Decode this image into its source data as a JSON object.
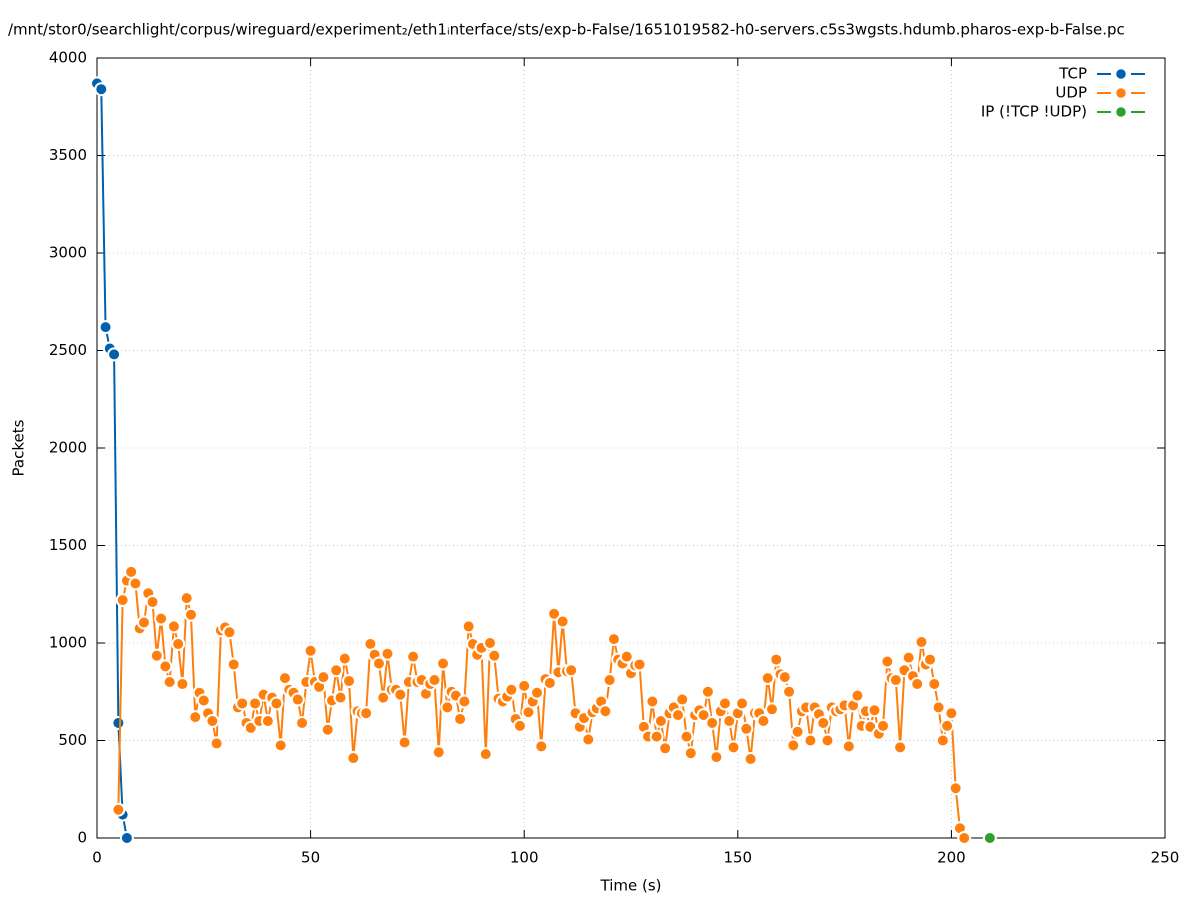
{
  "chart_data": {
    "type": "line",
    "title": "/mnt/stor0/searchlight/corpus/wireguard/experiment₂/eth1ᵢnterface/sts/exp-b-False/1651019582-h0-servers.c5s3wgsts.hdumb.pharos-exp-b-False.pc",
    "xlabel": "Time (s)",
    "ylabel": "Packets",
    "xlim": [
      0,
      250
    ],
    "xticks": [
      0,
      50,
      100,
      150,
      200,
      250
    ],
    "ylim": [
      0,
      4000
    ],
    "yticks": [
      0,
      500,
      1000,
      1500,
      2000,
      2500,
      3000,
      3500,
      4000
    ],
    "grid": true,
    "legend": "top-right",
    "series": [
      {
        "name": "TCP",
        "color": "#0060ad",
        "x": [
          0,
          1,
          2,
          3,
          4,
          5,
          6,
          7
        ],
        "values": [
          3870,
          3840,
          2620,
          2510,
          2480,
          590,
          120,
          0
        ]
      },
      {
        "name": "UDP",
        "color": "#ff7f0e",
        "x": [
          5,
          6,
          7,
          8,
          9,
          10,
          11,
          12,
          13,
          14,
          15,
          16,
          17,
          18,
          19,
          20,
          21,
          22,
          23,
          24,
          25,
          26,
          27,
          28,
          29,
          30,
          31,
          32,
          33,
          34,
          35,
          36,
          37,
          38,
          39,
          40,
          41,
          42,
          43,
          44,
          45,
          46,
          47,
          48,
          49,
          50,
          51,
          52,
          53,
          54,
          55,
          56,
          57,
          58,
          59,
          60,
          61,
          62,
          63,
          64,
          65,
          66,
          67,
          68,
          69,
          70,
          71,
          72,
          73,
          74,
          75,
          76,
          77,
          78,
          79,
          80,
          81,
          82,
          83,
          84,
          85,
          86,
          87,
          88,
          89,
          90,
          91,
          92,
          93,
          94,
          95,
          96,
          97,
          98,
          99,
          100,
          101,
          102,
          103,
          104,
          105,
          106,
          107,
          108,
          109,
          110,
          111,
          112,
          113,
          114,
          115,
          116,
          117,
          118,
          119,
          120,
          121,
          122,
          123,
          124,
          125,
          126,
          127,
          128,
          129,
          130,
          131,
          132,
          133,
          134,
          135,
          136,
          137,
          138,
          139,
          140,
          141,
          142,
          143,
          144,
          145,
          146,
          147,
          148,
          149,
          150,
          151,
          152,
          153,
          154,
          155,
          156,
          157,
          158,
          159,
          160,
          161,
          162,
          163,
          164,
          165,
          166,
          167,
          168,
          169,
          170,
          171,
          172,
          173,
          174,
          175,
          176,
          177,
          178,
          179,
          180,
          181,
          182,
          183,
          184,
          185,
          186,
          187,
          188,
          189,
          190,
          191,
          192,
          193,
          194,
          195,
          196,
          197,
          198,
          199,
          200,
          201,
          202,
          203
        ],
        "values": [
          145,
          1220,
          1320,
          1365,
          1305,
          1075,
          1105,
          1255,
          1210,
          935,
          1125,
          880,
          800,
          1085,
          995,
          790,
          1230,
          1145,
          620,
          745,
          705,
          640,
          600,
          485,
          1065,
          1080,
          1055,
          890,
          670,
          690,
          590,
          565,
          690,
          600,
          735,
          600,
          720,
          690,
          475,
          820,
          760,
          745,
          710,
          590,
          800,
          960,
          800,
          775,
          825,
          555,
          705,
          860,
          720,
          920,
          805,
          410,
          650,
          640,
          640,
          995,
          940,
          895,
          720,
          945,
          760,
          760,
          735,
          490,
          800,
          930,
          800,
          810,
          740,
          790,
          810,
          440,
          895,
          670,
          750,
          730,
          610,
          700,
          1085,
          995,
          940,
          975,
          430,
          1000,
          935,
          715,
          700,
          725,
          760,
          610,
          575,
          780,
          645,
          700,
          745,
          470,
          815,
          795,
          1150,
          850,
          1110,
          855,
          860,
          640,
          570,
          615,
          505,
          645,
          665,
          700,
          650,
          810,
          1020,
          915,
          895,
          930,
          845,
          885,
          890,
          570,
          520,
          700,
          520,
          600,
          460,
          640,
          670,
          630,
          710,
          520,
          435,
          630,
          655,
          630,
          750,
          590,
          415,
          650,
          690,
          600,
          465,
          640,
          690,
          560,
          405,
          640,
          640,
          600,
          820,
          660,
          915,
          840,
          825,
          750,
          475,
          545,
          650,
          670,
          500,
          670,
          635,
          590,
          500,
          670,
          650,
          660,
          680,
          470,
          680,
          730,
          575,
          650,
          570,
          655,
          535,
          575,
          905,
          820,
          810,
          465,
          860,
          925,
          830,
          790,
          1005,
          890,
          915,
          790,
          670,
          500,
          575,
          640,
          255,
          50,
          0
        ]
      },
      {
        "name": "IP (!TCP  !UDP)",
        "color": "#2ca02c",
        "x": [
          209
        ],
        "values": [
          0
        ]
      }
    ]
  }
}
